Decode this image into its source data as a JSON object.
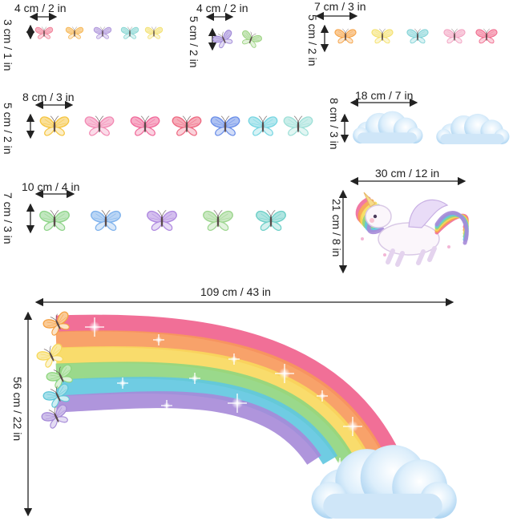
{
  "groups": [
    {
      "id": "g1",
      "width_label": "4 cm / 2 in",
      "height_label": "3 cm / 1 in",
      "colors": [
        "#f07a93",
        "#f5b24a",
        "#a98fd8",
        "#7fd3cf",
        "#f2df6a"
      ]
    },
    {
      "id": "g2",
      "width_label": "4 cm / 2 in",
      "height_label": "5 cm / 2 in",
      "colors": [
        "#9b83d6",
        "#9ad27f"
      ]
    },
    {
      "id": "g3",
      "width_label": "7 cm / 3 in",
      "height_label": "5 cm / 2 in",
      "colors": [
        "#f5a042",
        "#f4e06a",
        "#80d2d6",
        "#f2a0c0",
        "#f06a8c"
      ]
    },
    {
      "id": "g4",
      "width_label": "8 cm / 3 in",
      "height_label": "5 cm / 2 in",
      "colors": [
        "#f5c542",
        "#f28bb4",
        "#f06a9a",
        "#ee6a82",
        "#6a8ee8",
        "#78d6e2",
        "#9fe0d8"
      ]
    },
    {
      "id": "g5",
      "width_label": "10 cm / 4 in",
      "height_label": "7 cm / 3 in",
      "colors": [
        "#8fd48a",
        "#7fb2ec",
        "#b08ae0",
        "#9ed690",
        "#6fd0c8"
      ]
    },
    {
      "id": "clouds",
      "width_label": "18 cm / 7 in",
      "height_label": "8 cm / 3 in"
    },
    {
      "id": "unicorn",
      "width_label": "30 cm / 12 in",
      "height_label": "21 cm / 8 in"
    },
    {
      "id": "rainbow",
      "width_label": "109 cm / 43 in",
      "height_label": "56 cm / 22 in"
    }
  ],
  "rainbow_colors": [
    "#ef5f8c",
    "#f7985a",
    "#f8d85c",
    "#8fd57e",
    "#5fc6e0",
    "#a68ad8"
  ],
  "rainbow_butterflies": [
    "#f5a042",
    "#f6d85a",
    "#8fd57e",
    "#5fc6d8",
    "#a68ad8"
  ]
}
